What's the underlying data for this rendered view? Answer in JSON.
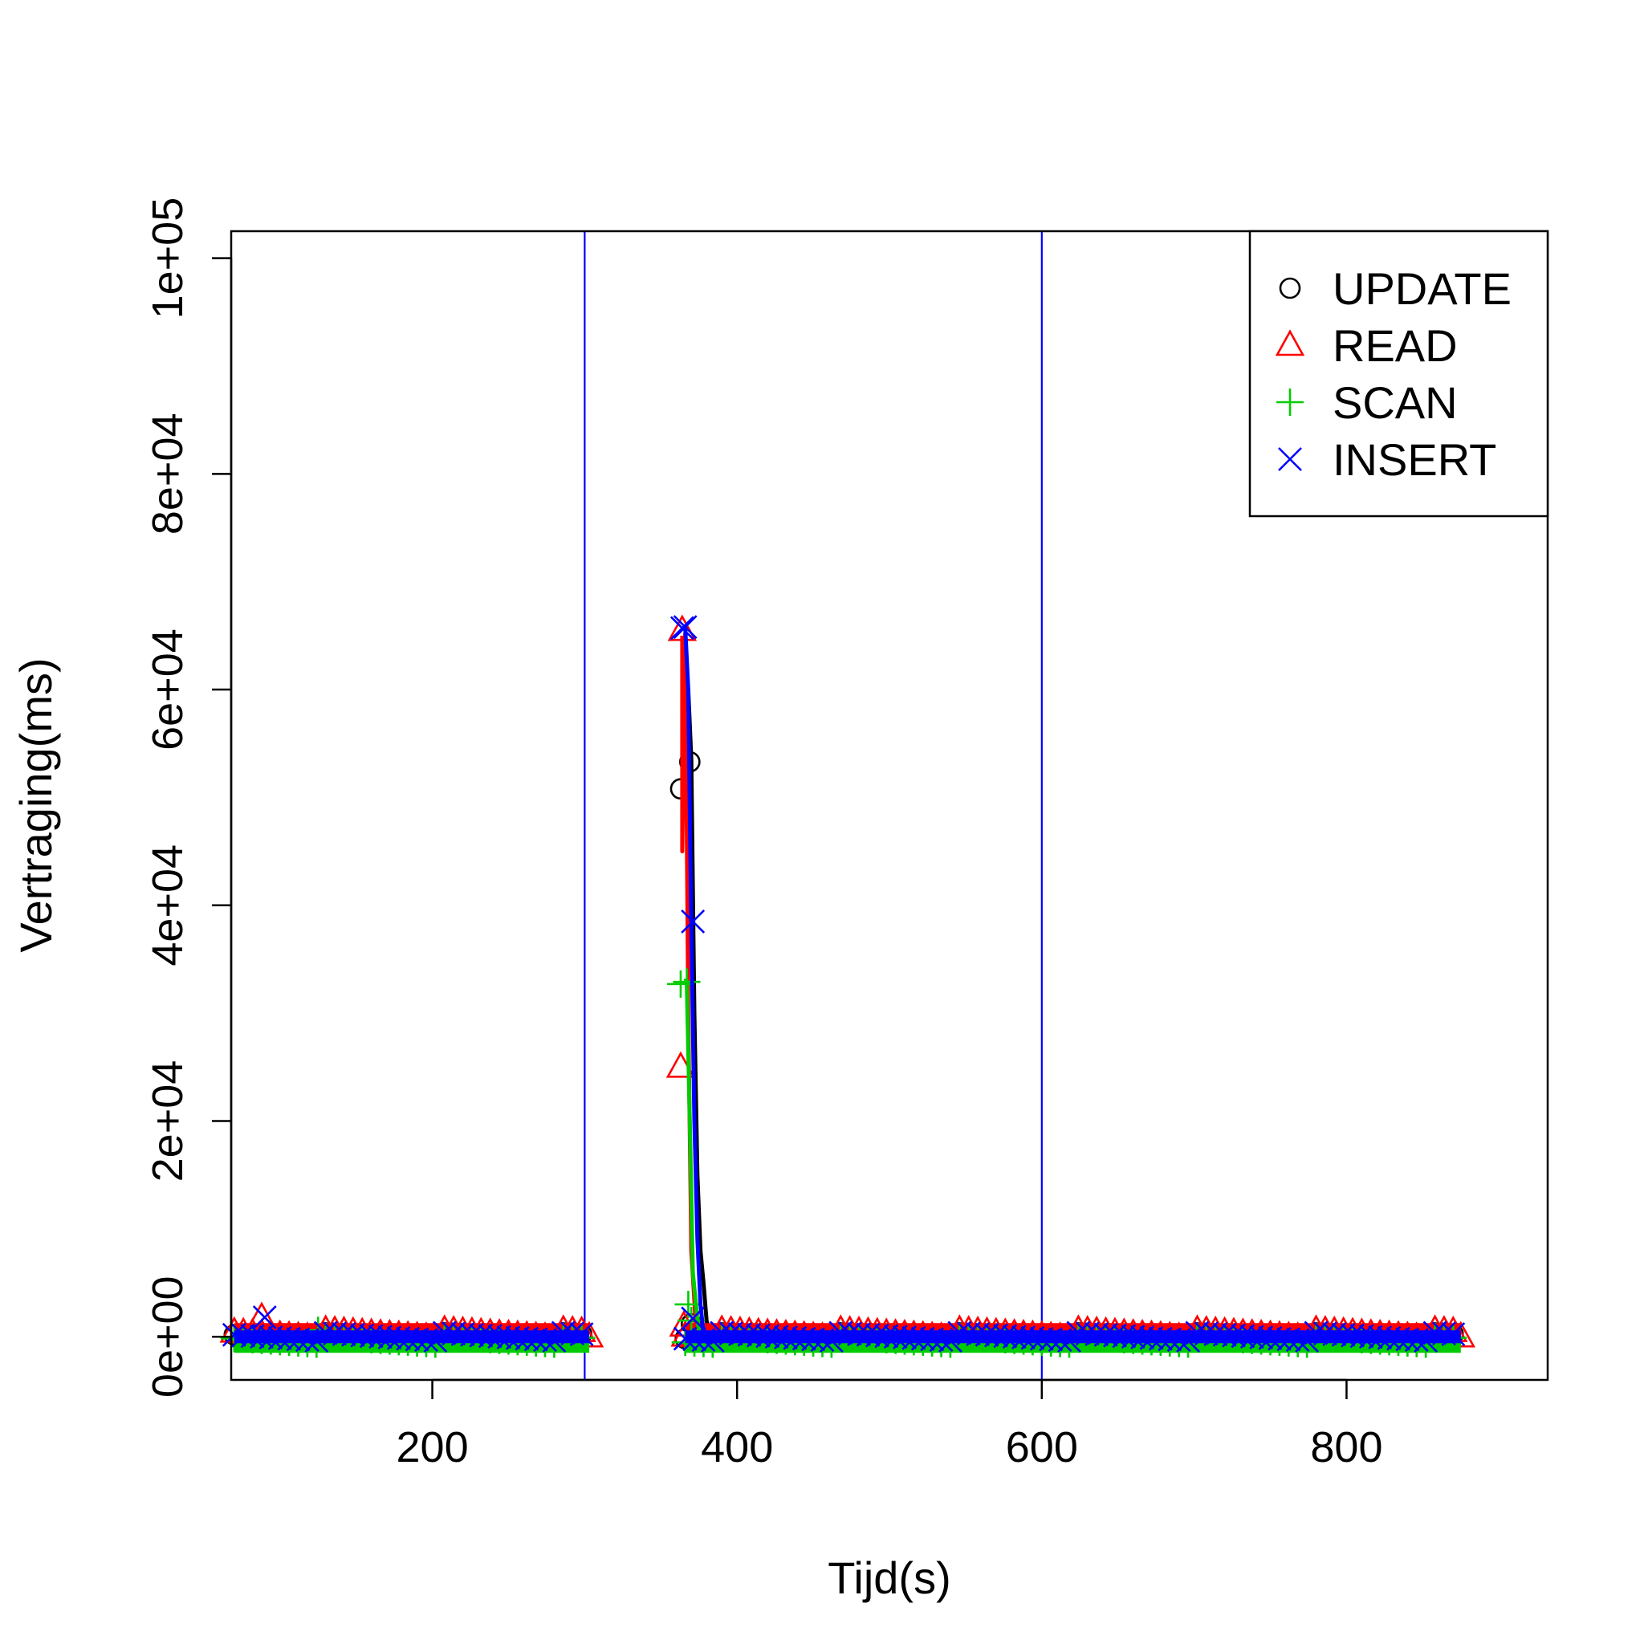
{
  "chart_data": {
    "type": "scatter",
    "title": "",
    "xlabel": "Tijd(s)",
    "ylabel": "Vertraging(ms)",
    "xlim": [
      68,
      932
    ],
    "ylim": [
      -4000,
      102500
    ],
    "x_ticks": [
      200,
      400,
      600,
      800
    ],
    "y_ticks": [
      0,
      20000,
      40000,
      60000,
      80000,
      100000
    ],
    "x_tick_labels": [
      "200",
      "400",
      "600",
      "800"
    ],
    "y_tick_labels": [
      "0e+00",
      "2e+04",
      "4e+04",
      "6e+04",
      "8e+04",
      "1e+05"
    ],
    "vertical_lines": [
      {
        "x": 300,
        "color": "#0000ff"
      },
      {
        "x": 600,
        "color": "#0000ff"
      }
    ],
    "legend_position": "top-right",
    "grid": false,
    "series": [
      {
        "name": "UPDATE",
        "marker": "circle",
        "color": "#000000",
        "dense_segments": [
          [
            70,
            303
          ],
          [
            366,
            875
          ]
        ],
        "line_points": [
          [
            364,
            61000
          ],
          [
            366,
            64000
          ],
          [
            367,
            50000
          ],
          [
            368,
            60000
          ],
          [
            370,
            53500
          ],
          [
            372,
            30000
          ],
          [
            374,
            15000
          ],
          [
            376,
            8000
          ],
          [
            378,
            5000
          ],
          [
            380,
            1500
          ],
          [
            382,
            200
          ]
        ],
        "outliers": [
          [
            363,
            50800
          ],
          [
            369,
            53300
          ],
          [
            370,
            1200
          ],
          [
            373,
            600
          ]
        ]
      },
      {
        "name": "READ",
        "marker": "triangle",
        "color": "#ff0000",
        "dense_segments": [
          [
            70,
            303
          ],
          [
            366,
            875
          ]
        ],
        "line_points": [
          [
            364,
            65000
          ],
          [
            364,
            45000
          ],
          [
            366,
            65200
          ],
          [
            368,
            30000
          ],
          [
            370,
            8000
          ],
          [
            373,
            1000
          ],
          [
            376,
            200
          ]
        ],
        "outliers": [
          [
            88,
            1800
          ],
          [
            364,
            65500
          ],
          [
            363,
            25000
          ],
          [
            365,
            1000
          ],
          [
            303,
            0
          ],
          [
            875,
            0
          ]
        ]
      },
      {
        "name": "SCAN",
        "marker": "plus",
        "color": "#00cc00",
        "dense_segments": [
          [
            70,
            303
          ],
          [
            366,
            875
          ]
        ],
        "line_points": [
          [
            365,
            33000
          ],
          [
            367,
            33000
          ],
          [
            369,
            20000
          ],
          [
            371,
            6000
          ],
          [
            373,
            3000
          ],
          [
            375,
            500
          ]
        ],
        "outliers": [
          [
            363,
            32700
          ],
          [
            367,
            32900
          ],
          [
            368,
            3000
          ],
          [
            370,
            1500
          ],
          [
            125,
            600
          ]
        ]
      },
      {
        "name": "INSERT",
        "marker": "cross",
        "color": "#0000ff",
        "dense_segments": [
          [
            70,
            303
          ],
          [
            366,
            875
          ]
        ],
        "line_points": [
          [
            366,
            65800
          ],
          [
            368,
            60000
          ],
          [
            370,
            38000
          ],
          [
            372,
            20000
          ],
          [
            374,
            9000
          ],
          [
            376,
            3000
          ],
          [
            378,
            300
          ]
        ],
        "outliers": [
          [
            90,
            1800
          ],
          [
            366,
            65800
          ],
          [
            364,
            65700
          ],
          [
            371,
            38500
          ],
          [
            371,
            1700
          ]
        ]
      }
    ]
  }
}
